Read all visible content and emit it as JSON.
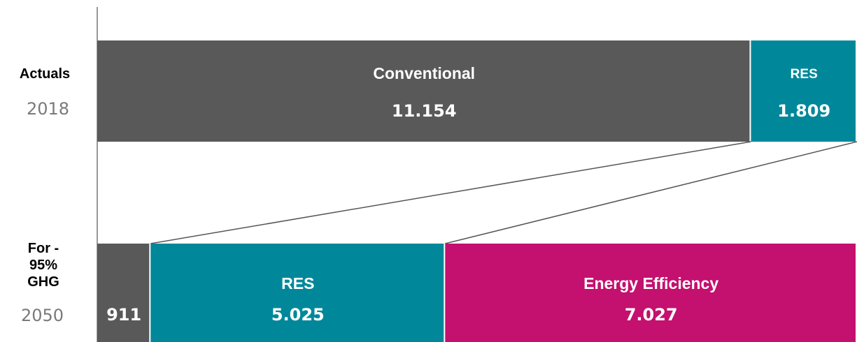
{
  "chart_data": {
    "type": "bar",
    "orientation": "horizontal",
    "stacked": true,
    "categories": [
      "2018",
      "2050"
    ],
    "category_groups": [
      "Actuals",
      "For - 95% GHG"
    ],
    "series": [
      {
        "name": "Conventional",
        "color": "#595959",
        "values": [
          11154,
          911
        ],
        "value_labels": [
          "11.154",
          "911"
        ],
        "show_name": [
          true,
          false
        ]
      },
      {
        "name": "RES",
        "color": "#00889a",
        "values": [
          1809,
          5025
        ],
        "value_labels": [
          "1.809",
          "5.025"
        ],
        "show_name": [
          true,
          true
        ]
      },
      {
        "name": "Energy Efficiency",
        "color": "#c4106e",
        "values": [
          null,
          7027
        ],
        "value_labels": [
          null,
          "7.027"
        ],
        "show_name": [
          false,
          true
        ]
      }
    ]
  }
}
